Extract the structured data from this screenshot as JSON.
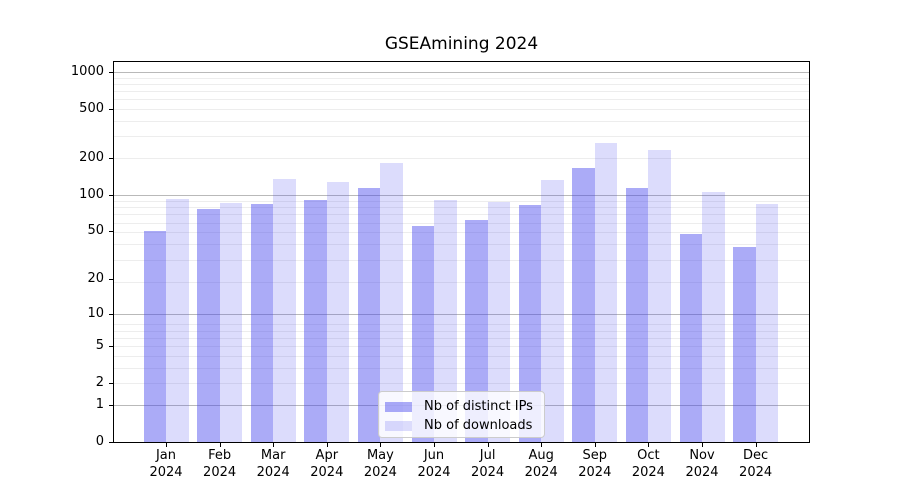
{
  "chart_data": {
    "type": "bar",
    "title": "GSEAmining 2024",
    "categories": [
      "Jan 2024",
      "Feb 2024",
      "Mar 2024",
      "Apr 2024",
      "May 2024",
      "Jun 2024",
      "Jul 2024",
      "Aug 2024",
      "Sep 2024",
      "Oct 2024",
      "Nov 2024",
      "Dec 2024"
    ],
    "series": [
      {
        "name": "Nb of distinct IPs",
        "color": "#a6a6f2",
        "fill": "rgba(68,68,238,0.45)",
        "values": [
          50,
          77,
          84,
          91,
          114,
          55,
          62,
          82,
          166,
          114,
          48,
          37
        ]
      },
      {
        "name": "Nb of downloads",
        "color": "#d9d9f8",
        "fill": "rgba(68,68,238,0.19)",
        "values": [
          93,
          86,
          135,
          128,
          183,
          90,
          87,
          131,
          264,
          230,
          106,
          84
        ]
      }
    ],
    "xlabel": "",
    "ylabel": "",
    "yscale": "log1p",
    "ylim": [
      0,
      1200
    ],
    "yticks": [
      {
        "value": 0,
        "label": "0"
      },
      {
        "value": 1,
        "label": "1"
      },
      {
        "value": 2,
        "label": "2"
      },
      {
        "value": 5,
        "label": "5"
      },
      {
        "value": 10,
        "label": "10"
      },
      {
        "value": 20,
        "label": "20"
      },
      {
        "value": 50,
        "label": "50"
      },
      {
        "value": 100,
        "label": "100"
      },
      {
        "value": 200,
        "label": "200"
      },
      {
        "value": 500,
        "label": "500"
      },
      {
        "value": 1000,
        "label": "1000"
      }
    ],
    "grid": true,
    "legend_position": "lower center"
  },
  "colors": {
    "major_grid": "#b9b9b9",
    "minor_grid": "#ededed",
    "spine": "#000000",
    "background": "#ffffff"
  }
}
